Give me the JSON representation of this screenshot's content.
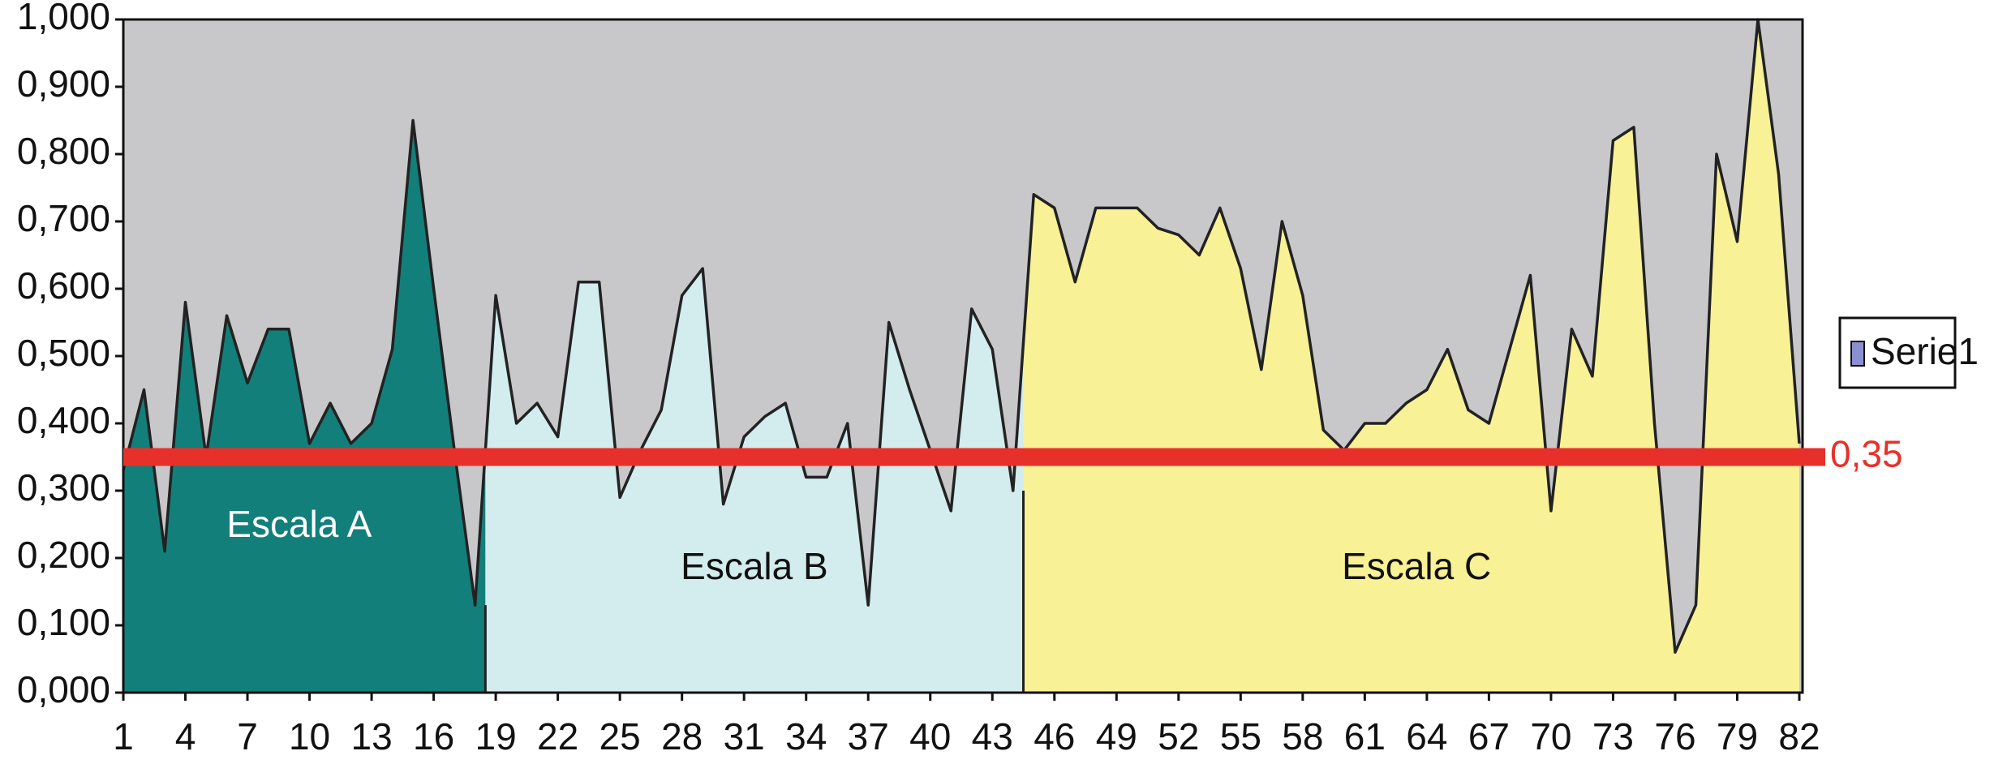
{
  "chart_data": {
    "type": "area",
    "x": [
      1,
      2,
      3,
      4,
      5,
      6,
      7,
      8,
      9,
      10,
      11,
      12,
      13,
      14,
      15,
      16,
      17,
      18,
      19,
      20,
      21,
      22,
      23,
      24,
      25,
      26,
      27,
      28,
      29,
      30,
      31,
      32,
      33,
      34,
      35,
      36,
      37,
      38,
      39,
      40,
      41,
      42,
      43,
      44,
      45,
      46,
      47,
      48,
      49,
      50,
      51,
      52,
      53,
      54,
      55,
      56,
      57,
      58,
      59,
      60,
      61,
      62,
      63,
      64,
      65,
      66,
      67,
      68,
      69,
      70,
      71,
      72,
      73,
      74,
      75,
      76,
      77,
      78,
      79,
      80,
      81,
      82
    ],
    "series": [
      {
        "name": "Serie1",
        "color": "#8a8fcf",
        "values": [
          0.33,
          0.45,
          0.21,
          0.58,
          0.35,
          0.56,
          0.46,
          0.54,
          0.54,
          0.37,
          0.43,
          0.37,
          0.4,
          0.51,
          0.85,
          0.6,
          0.36,
          0.13,
          0.59,
          0.4,
          0.43,
          0.38,
          0.61,
          0.61,
          0.29,
          0.36,
          0.42,
          0.59,
          0.63,
          0.28,
          0.38,
          0.41,
          0.43,
          0.32,
          0.32,
          0.4,
          0.13,
          0.55,
          0.45,
          0.36,
          0.27,
          0.57,
          0.51,
          0.3,
          0.74,
          0.72,
          0.61,
          0.72,
          0.72,
          0.72,
          0.69,
          0.68,
          0.65,
          0.72,
          0.63,
          0.48,
          0.7,
          0.59,
          0.39,
          0.36,
          0.4,
          0.4,
          0.43,
          0.45,
          0.51,
          0.42,
          0.4,
          0.51,
          0.62,
          0.27,
          0.54,
          0.47,
          0.82,
          0.84,
          0.4,
          0.06,
          0.13,
          0.8,
          0.67,
          1.0,
          0.77,
          0.37
        ]
      }
    ],
    "xlim": [
      1,
      82
    ],
    "xticks": [
      1,
      4,
      7,
      10,
      13,
      16,
      19,
      22,
      25,
      28,
      31,
      34,
      37,
      40,
      43,
      46,
      49,
      52,
      55,
      58,
      61,
      64,
      67,
      70,
      73,
      76,
      79,
      82
    ],
    "ylim": [
      0,
      1
    ],
    "yticks": [
      {
        "value": 0,
        "label": "0,000"
      },
      {
        "value": 0.1,
        "label": "0,100"
      },
      {
        "value": 0.2,
        "label": "0,200"
      },
      {
        "value": 0.3,
        "label": "0,300"
      },
      {
        "value": 0.4,
        "label": "0,400"
      },
      {
        "value": 0.5,
        "label": "0,500"
      },
      {
        "value": 0.6,
        "label": "0,600"
      },
      {
        "value": 0.7,
        "label": "0,700"
      },
      {
        "value": 0.8,
        "label": "0,800"
      },
      {
        "value": 0.9,
        "label": "0,900"
      },
      {
        "value": 1,
        "label": "1,000"
      }
    ],
    "regions": [
      {
        "label": "Escala A",
        "color": "#137f7a",
        "label_color": "#ffffff",
        "start": 1,
        "end": 18
      },
      {
        "label": "Escala B",
        "color": "#d3ecee",
        "label_color": "#111111",
        "start": 19,
        "end": 44
      },
      {
        "label": "Escala C",
        "color": "#f8f196",
        "label_color": "#111111",
        "start": 45,
        "end": 82
      }
    ],
    "threshold": {
      "value": 0.35,
      "label": "0,35",
      "color": "#e8302a"
    },
    "background": "#c8c8cb",
    "legend": "right"
  }
}
